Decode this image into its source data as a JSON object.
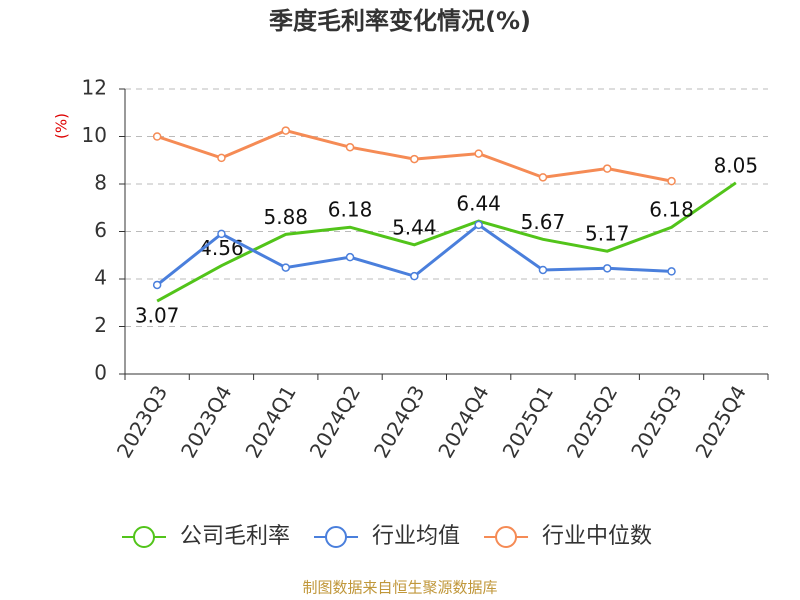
{
  "chart_data": {
    "type": "line",
    "title": "季度毛利率变化情况(%)",
    "y_label": "(%)",
    "categories": [
      "2023Q3",
      "2023Q4",
      "2024Q1",
      "2024Q2",
      "2024Q3",
      "2024Q4",
      "2025Q1",
      "2025Q2",
      "2025Q3",
      "2025Q4"
    ],
    "series": [
      {
        "name": "公司毛利率",
        "color": "#52c41a",
        "values": [
          3.07,
          4.56,
          5.88,
          6.18,
          5.44,
          6.44,
          5.67,
          5.17,
          6.18,
          8.05
        ],
        "data_labels": true,
        "markers": false
      },
      {
        "name": "行业均值",
        "color": "#4a7fdc",
        "values": [
          3.75,
          5.9,
          4.48,
          4.92,
          4.12,
          6.28,
          4.38,
          4.45,
          4.32,
          null
        ],
        "data_labels": false,
        "markers": true
      },
      {
        "name": "行业中位数",
        "color": "#f58b55",
        "values": [
          10.0,
          9.1,
          10.25,
          9.55,
          9.05,
          9.28,
          8.28,
          8.65,
          8.12,
          null
        ],
        "data_labels": false,
        "markers": true
      }
    ],
    "ylim": [
      0,
      12
    ],
    "yticks": [
      0,
      2,
      4,
      6,
      8,
      10,
      12
    ],
    "grid": true,
    "source": "制图数据来自恒生聚源数据库"
  }
}
